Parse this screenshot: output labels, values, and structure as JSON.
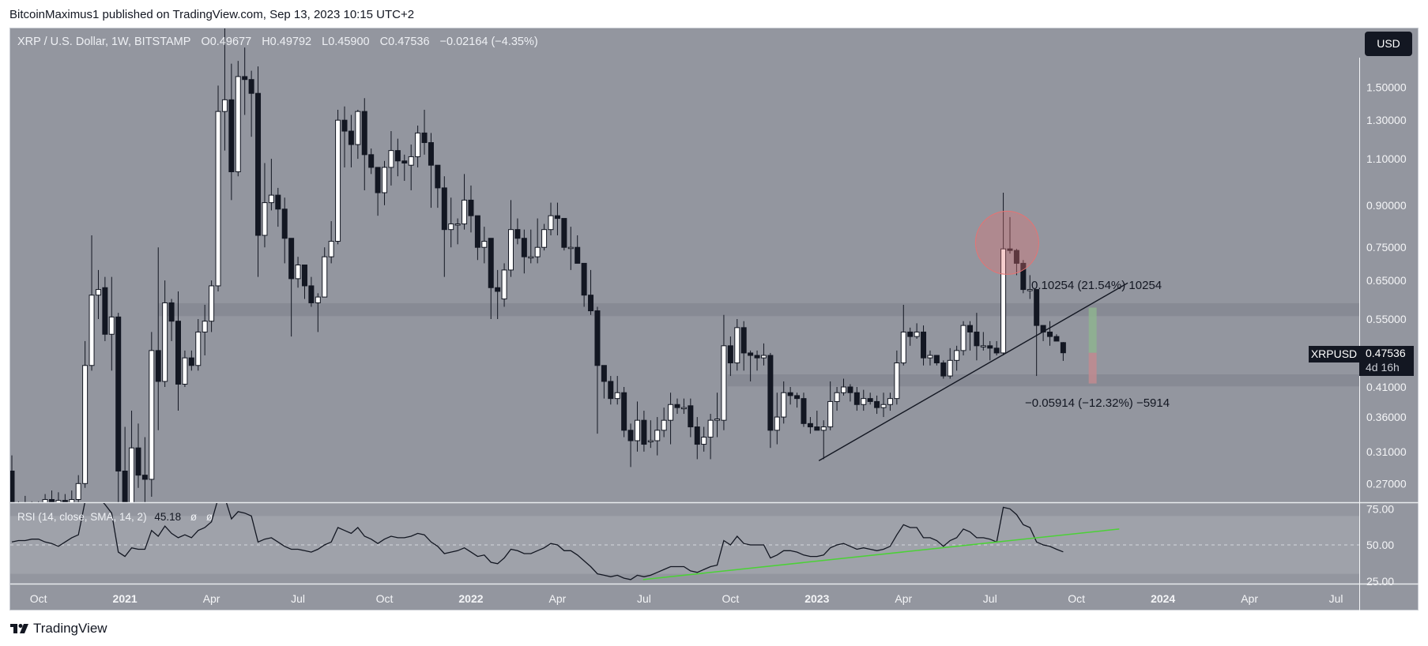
{
  "publisher": "BitcoinMaximus1 published on TradingView.com, Sep 13, 2023 10:15 UTC+2",
  "legend": {
    "symbol": "XRP / U.S. Dollar, 1W, BITSTAMP",
    "open": "O0.49677",
    "high": "H0.49792",
    "low": "L0.45900",
    "close": "C0.47536",
    "change": "−0.02164 (−4.35%)"
  },
  "currency_button": "USD",
  "price_label": {
    "symbol": "XRPUSD",
    "price": "0.47536",
    "countdown": "4d 16h"
  },
  "rsi_legend": {
    "label": "RSI (14, close, SMA, 14, 2)",
    "value": "45.18",
    "na1": "ø",
    "na2": "ø"
  },
  "measure": {
    "up_label": "0.10254 (21.54%) 10254",
    "down_label": "−0.05914 (−12.32%) −5914"
  },
  "brand": "TradingView",
  "colors": {
    "background": "#93969f",
    "candle_down": "#131722",
    "candle_up": "#ffffff",
    "zone": "#858892",
    "rsi_trend": "#4cd137",
    "circle": "#e57373",
    "measure_up": "#8fb58f",
    "measure_down": "#c48a8f"
  },
  "chart_data": [
    {
      "type": "candlestick",
      "interval": "1W",
      "first_week": "2020-09-07",
      "scale": "log",
      "ylim": [
        0.249,
        1.94
      ],
      "y_ticks": [
        "1.50000",
        "1.30000",
        "1.10000",
        "0.90000",
        "0.75000",
        "0.65000",
        "0.55000",
        "0.41000",
        "0.36000",
        "0.31000",
        "0.27000"
      ],
      "x_ticks": [
        {
          "text": "Oct",
          "date": "2020-10-01"
        },
        {
          "text": "2021",
          "date": "2021-01-01",
          "bold": true
        },
        {
          "text": "Apr",
          "date": "2021-04-01"
        },
        {
          "text": "Jul",
          "date": "2021-07-01"
        },
        {
          "text": "Oct",
          "date": "2021-10-01"
        },
        {
          "text": "2022",
          "date": "2022-01-01",
          "bold": true
        },
        {
          "text": "Apr",
          "date": "2022-04-01"
        },
        {
          "text": "Jul",
          "date": "2022-07-01"
        },
        {
          "text": "Oct",
          "date": "2022-10-01"
        },
        {
          "text": "2023",
          "date": "2023-01-01",
          "bold": true
        },
        {
          "text": "Apr",
          "date": "2023-04-01"
        },
        {
          "text": "Jul",
          "date": "2023-07-01"
        },
        {
          "text": "Oct",
          "date": "2023-10-01"
        },
        {
          "text": "2024",
          "date": "2024-01-01",
          "bold": true
        },
        {
          "text": "Apr",
          "date": "2024-04-01"
        },
        {
          "text": "Jul",
          "date": "2024-07-01"
        }
      ],
      "ohlc": [
        [
          0.285,
          0.305,
          0.235,
          0.245
        ],
        [
          0.245,
          0.25,
          0.235,
          0.24
        ],
        [
          0.24,
          0.256,
          0.235,
          0.245
        ],
        [
          0.245,
          0.25,
          0.235,
          0.243
        ],
        [
          0.243,
          0.25,
          0.238,
          0.245
        ],
        [
          0.245,
          0.258,
          0.24,
          0.252
        ],
        [
          0.252,
          0.262,
          0.243,
          0.248
        ],
        [
          0.248,
          0.26,
          0.24,
          0.251
        ],
        [
          0.251,
          0.258,
          0.24,
          0.246
        ],
        [
          0.246,
          0.262,
          0.238,
          0.252
        ],
        [
          0.252,
          0.28,
          0.248,
          0.27
        ],
        [
          0.27,
          0.5,
          0.265,
          0.45
        ],
        [
          0.45,
          0.79,
          0.44,
          0.61
        ],
        [
          0.61,
          0.68,
          0.55,
          0.625
        ],
        [
          0.63,
          0.66,
          0.5,
          0.515
        ],
        [
          0.515,
          0.66,
          0.44,
          0.555
        ],
        [
          0.555,
          0.565,
          0.21,
          0.285
        ],
        [
          0.285,
          0.345,
          0.17,
          0.24
        ],
        [
          0.22,
          0.37,
          0.21,
          0.315
        ],
        [
          0.315,
          0.35,
          0.265,
          0.28
        ],
        [
          0.28,
          0.33,
          0.24,
          0.275
        ],
        [
          0.275,
          0.52,
          0.255,
          0.48
        ],
        [
          0.48,
          0.75,
          0.34,
          0.42
        ],
        [
          0.42,
          0.65,
          0.41,
          0.59
        ],
        [
          0.59,
          0.6,
          0.5,
          0.545
        ],
        [
          0.545,
          0.62,
          0.37,
          0.415
        ],
        [
          0.415,
          0.48,
          0.41,
          0.465
        ],
        [
          0.465,
          0.48,
          0.44,
          0.45
        ],
        [
          0.45,
          0.55,
          0.44,
          0.52
        ],
        [
          0.52,
          0.585,
          0.47,
          0.545
        ],
        [
          0.545,
          0.65,
          0.52,
          0.635
        ],
        [
          0.635,
          1.51,
          0.62,
          1.35
        ],
        [
          1.35,
          1.96,
          1.14,
          1.42
        ],
        [
          1.42,
          1.66,
          0.92,
          1.04
        ],
        [
          1.04,
          1.68,
          1.02,
          1.57
        ],
        [
          1.57,
          1.78,
          1.33,
          1.55
        ],
        [
          1.55,
          1.61,
          1.21,
          1.46
        ],
        [
          1.46,
          1.64,
          0.66,
          0.79
        ],
        [
          0.79,
          1.08,
          0.75,
          0.91
        ],
        [
          0.91,
          1.1,
          0.88,
          0.94
        ],
        [
          0.94,
          0.97,
          0.82,
          0.885
        ],
        [
          0.885,
          0.93,
          0.7,
          0.78
        ],
        [
          0.78,
          0.78,
          0.51,
          0.655
        ],
        [
          0.655,
          0.72,
          0.63,
          0.695
        ],
        [
          0.695,
          0.695,
          0.6,
          0.635
        ],
        [
          0.635,
          0.66,
          0.58,
          0.59
        ],
        [
          0.59,
          0.615,
          0.52,
          0.605
        ],
        [
          0.605,
          0.75,
          0.605,
          0.72
        ],
        [
          0.72,
          0.84,
          0.7,
          0.77
        ],
        [
          0.77,
          1.36,
          0.76,
          1.3
        ],
        [
          1.3,
          1.38,
          1.06,
          1.24
        ],
        [
          1.24,
          1.33,
          1.06,
          1.17
        ],
        [
          1.17,
          1.36,
          1.1,
          1.35
        ],
        [
          1.35,
          1.43,
          0.96,
          1.12
        ],
        [
          1.12,
          1.15,
          1.03,
          1.06
        ],
        [
          1.06,
          1.06,
          0.86,
          0.95
        ],
        [
          0.95,
          1.09,
          0.9,
          1.06
        ],
        [
          1.06,
          1.24,
          0.98,
          1.14
        ],
        [
          1.14,
          1.2,
          1.02,
          1.09
        ],
        [
          1.09,
          1.12,
          1.0,
          1.08
        ],
        [
          1.07,
          1.17,
          0.96,
          1.11
        ],
        [
          1.11,
          1.27,
          1.06,
          1.23
        ],
        [
          1.23,
          1.36,
          1.12,
          1.18
        ],
        [
          1.18,
          1.23,
          0.89,
          1.07
        ],
        [
          1.07,
          1.07,
          0.89,
          0.97
        ],
        [
          0.97,
          1.02,
          0.66,
          0.81
        ],
        [
          0.81,
          0.93,
          0.75,
          0.83
        ],
        [
          0.83,
          0.85,
          0.76,
          0.83
        ],
        [
          0.83,
          1.03,
          0.81,
          0.92
        ],
        [
          0.92,
          0.98,
          0.8,
          0.86
        ],
        [
          0.86,
          0.86,
          0.71,
          0.75
        ],
        [
          0.75,
          0.82,
          0.7,
          0.77
        ],
        [
          0.78,
          0.78,
          0.55,
          0.63
        ],
        [
          0.63,
          0.68,
          0.55,
          0.62
        ],
        [
          0.6,
          0.7,
          0.58,
          0.68
        ],
        [
          0.68,
          0.92,
          0.66,
          0.81
        ],
        [
          0.81,
          0.85,
          0.76,
          0.78
        ],
        [
          0.78,
          0.81,
          0.67,
          0.72
        ],
        [
          0.72,
          0.81,
          0.7,
          0.72
        ],
        [
          0.72,
          0.85,
          0.7,
          0.75
        ],
        [
          0.75,
          0.83,
          0.74,
          0.81
        ],
        [
          0.81,
          0.91,
          0.79,
          0.86
        ],
        [
          0.86,
          0.91,
          0.79,
          0.85
        ],
        [
          0.85,
          0.85,
          0.74,
          0.75
        ],
        [
          0.75,
          0.82,
          0.68,
          0.75
        ],
        [
          0.75,
          0.79,
          0.7,
          0.7
        ],
        [
          0.7,
          0.7,
          0.58,
          0.61
        ],
        [
          0.61,
          0.68,
          0.56,
          0.57
        ],
        [
          0.57,
          0.58,
          0.335,
          0.45
        ],
        [
          0.45,
          0.45,
          0.39,
          0.42
        ],
        [
          0.42,
          0.43,
          0.38,
          0.39
        ],
        [
          0.39,
          0.43,
          0.38,
          0.4
        ],
        [
          0.4,
          0.41,
          0.33,
          0.34
        ],
        [
          0.34,
          0.35,
          0.29,
          0.325
        ],
        [
          0.325,
          0.385,
          0.31,
          0.355
        ],
        [
          0.355,
          0.37,
          0.31,
          0.32
        ],
        [
          0.325,
          0.355,
          0.315,
          0.325
        ],
        [
          0.325,
          0.36,
          0.305,
          0.34
        ],
        [
          0.34,
          0.375,
          0.33,
          0.355
        ],
        [
          0.355,
          0.4,
          0.32,
          0.38
        ],
        [
          0.38,
          0.39,
          0.365,
          0.375
        ],
        [
          0.375,
          0.39,
          0.365,
          0.375
        ],
        [
          0.378,
          0.39,
          0.33,
          0.345
        ],
        [
          0.345,
          0.36,
          0.3,
          0.32
        ],
        [
          0.32,
          0.345,
          0.31,
          0.33
        ],
        [
          0.33,
          0.365,
          0.3,
          0.355
        ],
        [
          0.355,
          0.4,
          0.33,
          0.357
        ],
        [
          0.355,
          0.56,
          0.34,
          0.49
        ],
        [
          0.49,
          0.51,
          0.43,
          0.455
        ],
        [
          0.455,
          0.55,
          0.44,
          0.53
        ],
        [
          0.53,
          0.545,
          0.44,
          0.475
        ],
        [
          0.475,
          0.48,
          0.42,
          0.47
        ],
        [
          0.47,
          0.48,
          0.44,
          0.465
        ],
        [
          0.465,
          0.495,
          0.45,
          0.47
        ],
        [
          0.47,
          0.475,
          0.315,
          0.34
        ],
        [
          0.34,
          0.4,
          0.32,
          0.36
        ],
        [
          0.36,
          0.42,
          0.35,
          0.4
        ],
        [
          0.4,
          0.41,
          0.38,
          0.395
        ],
        [
          0.395,
          0.4,
          0.375,
          0.39
        ],
        [
          0.39,
          0.4,
          0.345,
          0.35
        ],
        [
          0.35,
          0.36,
          0.335,
          0.345
        ],
        [
          0.345,
          0.37,
          0.34,
          0.34
        ],
        [
          0.34,
          0.355,
          0.3,
          0.345
        ],
        [
          0.345,
          0.42,
          0.34,
          0.385
        ],
        [
          0.385,
          0.41,
          0.37,
          0.4
        ],
        [
          0.4,
          0.425,
          0.395,
          0.41
        ],
        [
          0.41,
          0.415,
          0.385,
          0.4
        ],
        [
          0.4,
          0.41,
          0.37,
          0.38
        ],
        [
          0.38,
          0.405,
          0.37,
          0.39
        ],
        [
          0.39,
          0.4,
          0.38,
          0.385
        ],
        [
          0.385,
          0.395,
          0.365,
          0.375
        ],
        [
          0.375,
          0.4,
          0.36,
          0.38
        ],
        [
          0.38,
          0.4,
          0.37,
          0.39
        ],
        [
          0.39,
          0.48,
          0.38,
          0.455
        ],
        [
          0.455,
          0.585,
          0.45,
          0.52
        ],
        [
          0.52,
          0.53,
          0.49,
          0.51
        ],
        [
          0.51,
          0.54,
          0.505,
          0.52
        ],
        [
          0.52,
          0.535,
          0.45,
          0.465
        ],
        [
          0.465,
          0.48,
          0.45,
          0.47
        ],
        [
          0.47,
          0.47,
          0.45,
          0.455
        ],
        [
          0.455,
          0.46,
          0.425,
          0.43
        ],
        [
          0.43,
          0.485,
          0.425,
          0.46
        ],
        [
          0.46,
          0.49,
          0.44,
          0.48
        ],
        [
          0.48,
          0.545,
          0.47,
          0.535
        ],
        [
          0.535,
          0.545,
          0.48,
          0.52
        ],
        [
          0.52,
          0.565,
          0.46,
          0.49
        ],
        [
          0.49,
          0.52,
          0.48,
          0.49
        ],
        [
          0.49,
          0.5,
          0.46,
          0.485
        ],
        [
          0.485,
          0.5,
          0.47,
          0.475
        ],
        [
          0.475,
          0.95,
          0.47,
          0.745
        ],
        [
          0.745,
          0.855,
          0.73,
          0.74
        ],
        [
          0.74,
          0.745,
          0.665,
          0.7
        ],
        [
          0.7,
          0.71,
          0.615,
          0.625
        ],
        [
          0.625,
          0.665,
          0.6,
          0.625
        ],
        [
          0.625,
          0.625,
          0.43,
          0.535
        ],
        [
          0.535,
          0.535,
          0.5,
          0.52
        ],
        [
          0.52,
          0.545,
          0.49,
          0.51
        ],
        [
          0.51,
          0.515,
          0.5,
          0.5
        ],
        [
          0.49677,
          0.49792,
          0.459,
          0.47536
        ]
      ],
      "zones": [
        {
          "from_date": "2021-02-08",
          "low": 0.557,
          "high": 0.589
        },
        {
          "from_date": "2022-09-30",
          "low": 0.411,
          "high": 0.433
        }
      ],
      "trendline": {
        "start": {
          "date": "2023-01-04",
          "price": 0.298
        },
        "end": {
          "date": "2023-11-25",
          "price": 0.643
        }
      },
      "circle": {
        "date": "2023-07-21",
        "price": 0.765
      },
      "measure": {
        "date": "2023-10-19",
        "base": 0.47536,
        "up": 0.10254,
        "down": 0.05914
      }
    },
    {
      "type": "line",
      "title": "RSI (14, close, SMA, 14, 2)",
      "y_ticks": [
        "75.00",
        "50.00",
        "25.00"
      ],
      "band": [
        30,
        70
      ],
      "midline": 50,
      "values": [
        52,
        53,
        53,
        54,
        54,
        52,
        51,
        49,
        52,
        55,
        57,
        80,
        85,
        83,
        78,
        72,
        45,
        42,
        48,
        47,
        47,
        60,
        56,
        63,
        58,
        55,
        57,
        55,
        60,
        62,
        66,
        82,
        83,
        68,
        73,
        72,
        70,
        52,
        54,
        55,
        52,
        49,
        47,
        47,
        46,
        45,
        47,
        50,
        52,
        62,
        60,
        58,
        62,
        56,
        54,
        51,
        54,
        56,
        55,
        55,
        56,
        58,
        57,
        52,
        49,
        44,
        45,
        46,
        48,
        45,
        42,
        43,
        38,
        37,
        41,
        47,
        46,
        44,
        44,
        46,
        48,
        51,
        50,
        46,
        46,
        43,
        39,
        35,
        30,
        29,
        28,
        29,
        27,
        26,
        29,
        28,
        29,
        31,
        33,
        35,
        35,
        35,
        32,
        31,
        33,
        35,
        36,
        53,
        50,
        56,
        51,
        50,
        50,
        50,
        41,
        43,
        46,
        46,
        45,
        43,
        42,
        42,
        43,
        48,
        50,
        51,
        49,
        47,
        48,
        47,
        46,
        47,
        49,
        57,
        64,
        62,
        62,
        55,
        55,
        53,
        49,
        53,
        55,
        61,
        59,
        55,
        55,
        54,
        52,
        76,
        75,
        71,
        64,
        62,
        52,
        50,
        49,
        47,
        45.18
      ],
      "trendline": {
        "start": {
          "date": "2022-07-03",
          "value": 26
        },
        "end": {
          "date": "2023-11-16",
          "value": 61
        }
      }
    }
  ]
}
